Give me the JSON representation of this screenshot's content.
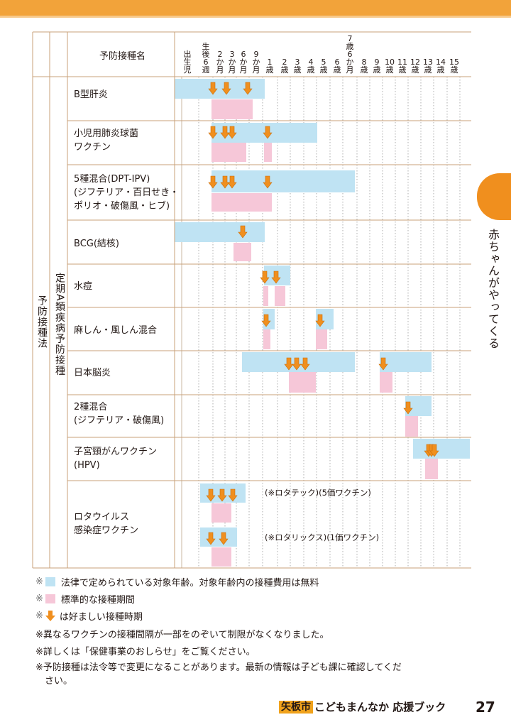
{
  "header": {
    "vaccine_column_title": "予防接種名",
    "age_labels": [
      "出\n生\n児",
      "生\n後\n6\n週",
      "2\nか\n月",
      "3\nか\n月",
      "6\nか\n月",
      "9\nか\n月",
      "1\n歳",
      "2\n歳",
      "3\n歳",
      "4\n歳",
      "5\n歳",
      "6\n歳",
      "7\n歳\n6\nか\n月",
      "8\n歳",
      "9\n歳",
      "10\n歳",
      "11\n歳",
      "12\n歳",
      "13\n歳",
      "14\n歳",
      "15\n歳"
    ]
  },
  "row_labels": {
    "law": "予防接種法",
    "category": "定期A類疾病予防接種"
  },
  "vaccines": [
    {
      "name": "B型肝炎"
    },
    {
      "name": "小児用肺炎球菌\nワクチン"
    },
    {
      "name": "5種混合(DPT-IPV)\n(ジフテリア・百日せき・\nポリオ・破傷風・ヒブ)"
    },
    {
      "name": "BCG(結核)"
    },
    {
      "name": "水痘"
    },
    {
      "name": "麻しん・風しん混合"
    },
    {
      "name": "日本脳炎"
    },
    {
      "name": "2種混合\n(ジフテリア・破傷風)"
    },
    {
      "name": "子宮頸がんワクチン\n(HPV)"
    },
    {
      "name": "ロタウイルス\n感染症ワクチン"
    }
  ],
  "rota_notes": {
    "rotateq": "(※ロタテック)(5価ワクチン)",
    "rotarix": "(※ロタリックス)(1価ワクチン)"
  },
  "legend": {
    "blue": "法律で定められている対象年齢。対象年齢内の接種費用は無料",
    "pink": "標準的な接種期間",
    "arrow": "は好ましい接種時期",
    "mark": "※"
  },
  "footnotes": [
    "※異なるワクチンの接種間隔が一部をのぞいて制限がなくなりました。",
    "※詳しくは「保健事業のおしらせ」をご覧ください。",
    "※予防接種は法令等で変更になることがあります。最新の情報は子ども課に確認してくだ\n　さい。"
  ],
  "side_tab": "赤ちゃんがやってくる",
  "footer": {
    "city": "矢板市",
    "title": "こどもまんなか 応援ブック",
    "page": "27"
  },
  "colors": {
    "legal_age": "#bfe3f3",
    "standard_period": "#f6c7d8",
    "arrow": "#f08f1e",
    "accent": "#f2a33a"
  }
}
